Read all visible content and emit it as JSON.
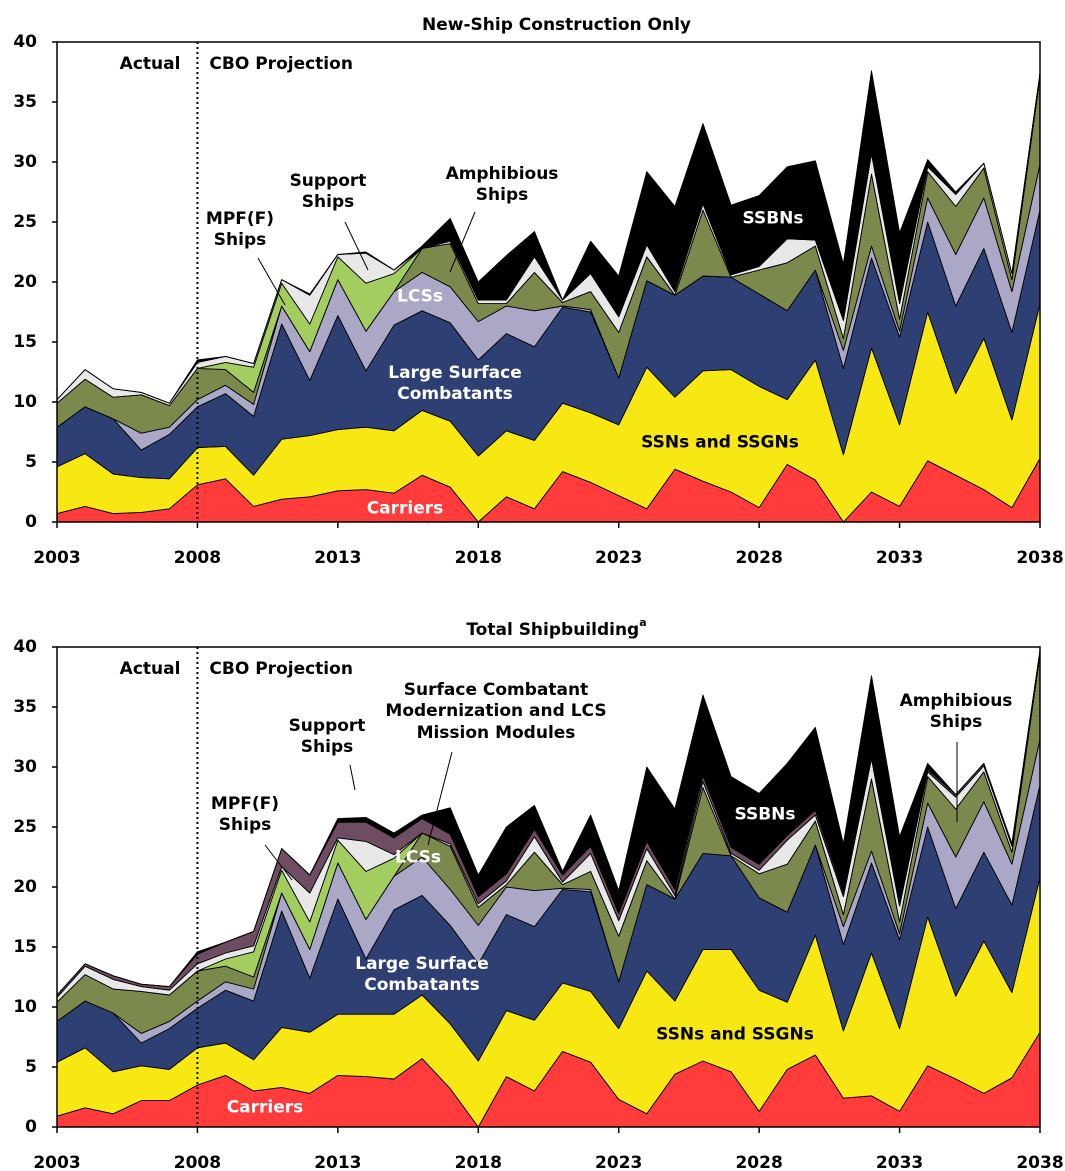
{
  "chart_data": [
    {
      "type": "area",
      "stacked": true,
      "title": "New-Ship Construction Only",
      "annotations": [
        "Actual",
        "CBO Projection"
      ],
      "divider_x": 2008,
      "x": [
        2003,
        2004,
        2005,
        2006,
        2007,
        2008,
        2009,
        2010,
        2011,
        2012,
        2013,
        2014,
        2015,
        2016,
        2017,
        2018,
        2019,
        2020,
        2021,
        2022,
        2023,
        2024,
        2025,
        2026,
        2027,
        2028,
        2029,
        2030,
        2031,
        2032,
        2033,
        2034,
        2035,
        2036,
        2037,
        2038
      ],
      "xlim": [
        2003,
        2038
      ],
      "xticks": [
        2003,
        2008,
        2013,
        2018,
        2023,
        2028,
        2033,
        2038
      ],
      "ylim": [
        0,
        40
      ],
      "yticks": [
        0,
        5,
        10,
        15,
        20,
        25,
        30,
        35,
        40
      ],
      "series": [
        {
          "name": "Carriers",
          "color": "#ff3b3b",
          "values": [
            0.7,
            1.3,
            0.7,
            0.8,
            1.1,
            3.1,
            3.6,
            1.3,
            1.9,
            2.1,
            2.6,
            2.7,
            2.4,
            3.9,
            2.9,
            0,
            2.1,
            1.1,
            4.2,
            3.3,
            2.2,
            1.1,
            4.4,
            3.4,
            2.5,
            1.2,
            4.8,
            3.5,
            0,
            2.5,
            1.3,
            5.1,
            3.9,
            2.7,
            1.2,
            5.3
          ]
        },
        {
          "name": "SSNs and SSGNs",
          "color": "#f7e813",
          "values": [
            3.9,
            4.4,
            3.3,
            2.9,
            2.5,
            3.1,
            2.7,
            2.6,
            5.0,
            5.1,
            5.1,
            5.2,
            5.2,
            5.4,
            5.5,
            5.5,
            5.5,
            5.7,
            5.7,
            5.8,
            5.9,
            11.8,
            6.0,
            9.2,
            10.2,
            10.1,
            5.4,
            10.0,
            5.6,
            12.0,
            6.8,
            12.4,
            6.8,
            12.6,
            7.3,
            12.9
          ]
        },
        {
          "name": "Large Surface Combatants",
          "color": "#2e3f74",
          "values": [
            3.3,
            3.9,
            4.6,
            2.3,
            3.7,
            3.4,
            4.4,
            4.9,
            9.6,
            4.6,
            9.5,
            4.7,
            8.8,
            8.3,
            8.2,
            8.0,
            8.1,
            7.8,
            8.0,
            8.4,
            3.9,
            7.2,
            8.5,
            7.9,
            7.7,
            7.7,
            7.4,
            7.5,
            7.2,
            7.5,
            7.3,
            7.5,
            7.3,
            7.5,
            7.3,
            7.8
          ]
        },
        {
          "name": "LCSs",
          "color": "#aaa8c6",
          "values": [
            0,
            0,
            0,
            1.4,
            0.6,
            0.6,
            0.7,
            1.0,
            1.5,
            2.4,
            3.0,
            3.3,
            2.8,
            3.2,
            3.0,
            3.2,
            2.3,
            3.0,
            0.1,
            0.2,
            0,
            0,
            0,
            0,
            0,
            0,
            0,
            0,
            1.5,
            1.0,
            0.5,
            2.0,
            4.3,
            4.2,
            3.4,
            3.8
          ]
        },
        {
          "name": "Amphibious Ships",
          "color": "#7b8a4c",
          "values": [
            2.0,
            2.3,
            1.8,
            3.2,
            1.8,
            2.6,
            1.3,
            1.0,
            0,
            0,
            0,
            0,
            0,
            2.0,
            3.6,
            1.5,
            0.2,
            3.2,
            0.3,
            1.5,
            3.8,
            2.0,
            0,
            5.5,
            0,
            2.0,
            4.0,
            2.0,
            1.0,
            6.0,
            1.0,
            2.2,
            4.0,
            2.5,
            1.0,
            7.3
          ]
        },
        {
          "name": "MPF(F) Ships",
          "color": "#a4cd60",
          "values": [
            0,
            0,
            0,
            0,
            0,
            0,
            0.6,
            2.1,
            1.9,
            2.3,
            1.9,
            4.0,
            1.5,
            0,
            0,
            0,
            0,
            0,
            0,
            0,
            0,
            0,
            0,
            0,
            0,
            0,
            0,
            0,
            0,
            0,
            0,
            0,
            0,
            0,
            0,
            0
          ]
        },
        {
          "name": "Support Ships",
          "color": "#e8e8e8",
          "values": [
            0.3,
            0.8,
            0.7,
            0.2,
            0.2,
            0.5,
            0.5,
            0.3,
            0.3,
            2.4,
            0.2,
            2.5,
            0.3,
            0,
            0.2,
            0.3,
            0.3,
            1.3,
            0.2,
            1.5,
            1.3,
            1.0,
            0.3,
            0.5,
            0.2,
            0.3,
            2.0,
            0.5,
            1.5,
            1.7,
            1.3,
            0.4,
            1.0,
            0.4,
            0.5,
            0.3
          ]
        },
        {
          "name": "SSBNs",
          "color": "#000000",
          "values": [
            0,
            0,
            0,
            0,
            0,
            0.2,
            0,
            0,
            0,
            0.1,
            0,
            0.1,
            0,
            0.2,
            1.9,
            1.5,
            3.7,
            2.1,
            0,
            2.7,
            3.4,
            6.1,
            7.1,
            6.7,
            5.8,
            5.9,
            6.0,
            6.6,
            4.7,
            6.9,
            5.9,
            0.6,
            0.2,
            0,
            0,
            0
          ]
        }
      ]
    },
    {
      "type": "area",
      "stacked": true,
      "title": "Total Shipbuilding",
      "title_note": "a",
      "annotations": [
        "Actual",
        "CBO Projection"
      ],
      "divider_x": 2008,
      "x": [
        2003,
        2004,
        2005,
        2006,
        2007,
        2008,
        2009,
        2010,
        2011,
        2012,
        2013,
        2014,
        2015,
        2016,
        2017,
        2018,
        2019,
        2020,
        2021,
        2022,
        2023,
        2024,
        2025,
        2026,
        2027,
        2028,
        2029,
        2030,
        2031,
        2032,
        2033,
        2034,
        2035,
        2036,
        2037,
        2038
      ],
      "xlim": [
        2003,
        2038
      ],
      "xticks": [
        2003,
        2008,
        2013,
        2018,
        2023,
        2028,
        2033,
        2038
      ],
      "ylim": [
        0,
        40
      ],
      "yticks": [
        0,
        5,
        10,
        15,
        20,
        25,
        30,
        35,
        40
      ],
      "series": [
        {
          "name": "Carriers",
          "color": "#ff3b3b",
          "values": [
            0.9,
            1.6,
            1.1,
            2.2,
            2.2,
            3.5,
            4.3,
            3.0,
            3.3,
            2.8,
            4.3,
            4.2,
            4.0,
            5.7,
            3.2,
            0,
            4.2,
            3.0,
            6.3,
            5.4,
            2.3,
            1.1,
            4.4,
            5.5,
            4.6,
            1.3,
            4.8,
            6.0,
            2.4,
            2.6,
            1.3,
            5.1,
            4.0,
            2.8,
            4.1,
            7.9
          ]
        },
        {
          "name": "SSNs and SSGNs",
          "color": "#f7e813",
          "values": [
            4.5,
            5.0,
            3.5,
            2.9,
            2.6,
            3.1,
            2.7,
            2.6,
            5.0,
            5.1,
            5.1,
            5.2,
            5.4,
            5.3,
            5.4,
            5.5,
            5.5,
            5.9,
            5.7,
            5.9,
            5.9,
            11.9,
            6.1,
            9.3,
            10.2,
            10.1,
            5.6,
            10.0,
            5.6,
            11.9,
            6.9,
            12.4,
            6.9,
            12.7,
            7.1,
            12.9
          ]
        },
        {
          "name": "Large Surface Combatants",
          "color": "#2e3f74",
          "values": [
            3.4,
            3.9,
            4.9,
            1.9,
            3.4,
            3.3,
            4.4,
            4.9,
            9.7,
            4.5,
            9.6,
            4.6,
            8.7,
            8.3,
            8.2,
            8.1,
            8.0,
            7.8,
            7.8,
            8.3,
            3.9,
            7.2,
            8.5,
            8.0,
            7.8,
            7.7,
            7.5,
            7.5,
            7.2,
            7.5,
            7.4,
            7.5,
            7.3,
            7.4,
            7.3,
            7.7
          ]
        },
        {
          "name": "LCSs",
          "color": "#aaa8c6",
          "values": [
            0,
            0,
            0,
            0.8,
            0.6,
            0.6,
            0.7,
            1.0,
            1.5,
            2.4,
            3.0,
            3.3,
            2.8,
            3.2,
            3.0,
            3.2,
            2.3,
            3.0,
            0.1,
            0.2,
            0,
            0,
            0,
            0,
            0,
            0,
            0,
            0,
            1.5,
            1.0,
            0.5,
            2.0,
            4.3,
            4.2,
            3.4,
            3.8
          ]
        },
        {
          "name": "Amphibious Ships",
          "color": "#7b8a4c",
          "values": [
            1.6,
            2.2,
            2.0,
            3.5,
            2.2,
            2.5,
            1.3,
            1.0,
            0,
            0,
            0,
            0,
            0,
            2.0,
            3.6,
            1.5,
            0.2,
            3.2,
            0.3,
            1.5,
            3.8,
            2.0,
            0,
            5.5,
            0,
            2.0,
            4.0,
            2.0,
            1.0,
            6.0,
            1.0,
            2.2,
            4.0,
            2.5,
            1.0,
            7.1
          ]
        },
        {
          "name": "MPF(F) Ships",
          "color": "#a4cd60",
          "values": [
            0,
            0,
            0,
            0,
            0,
            0,
            0.6,
            2.1,
            1.9,
            2.3,
            1.9,
            4.0,
            1.5,
            0,
            0,
            0,
            0,
            0,
            0,
            0,
            0,
            0,
            0,
            0,
            0,
            0,
            0,
            0,
            0,
            0,
            0,
            0,
            0,
            0,
            0,
            0
          ]
        },
        {
          "name": "Support Ships",
          "color": "#e8e8e8",
          "values": [
            0.4,
            0.7,
            0.8,
            0.4,
            0.4,
            0.6,
            0.5,
            0.5,
            0.3,
            2.4,
            0.2,
            2.5,
            0.3,
            0,
            0.2,
            0.3,
            0.3,
            1.3,
            0.2,
            1.5,
            1.3,
            1.0,
            0.3,
            0.5,
            0.2,
            0.3,
            2.0,
            0.5,
            1.5,
            1.7,
            1.3,
            0.4,
            1.0,
            0.5,
            0.5,
            0.2
          ]
        },
        {
          "name": "Surface Combatant Modernization and LCS Mission Modules",
          "color": "#6e4c62",
          "values": [
            0.2,
            0.2,
            0.3,
            0.2,
            0.3,
            0.8,
            0.9,
            1.2,
            1.5,
            1.5,
            1.3,
            1.6,
            1.4,
            1.2,
            0.8,
            0.6,
            0.6,
            0.6,
            0.6,
            0.6,
            0.6,
            0.6,
            0.5,
            0.5,
            0.5,
            0.5,
            0.4,
            0.4,
            0.3,
            0.3,
            0.3,
            0.2,
            0.2,
            0.2,
            0.2,
            0.1
          ]
        },
        {
          "name": "SSBNs",
          "color": "#000000",
          "values": [
            0,
            0,
            0,
            0,
            0,
            0.2,
            0,
            0,
            0,
            0,
            0.3,
            0.4,
            0.4,
            0.3,
            2.2,
            1.8,
            3.9,
            2.0,
            0.3,
            2.6,
            1.9,
            6.2,
            6.7,
            6.7,
            5.9,
            5.9,
            6.0,
            6.9,
            4.1,
            6.6,
            5.5,
            0.5,
            0,
            0,
            0,
            0
          ]
        }
      ]
    }
  ]
}
